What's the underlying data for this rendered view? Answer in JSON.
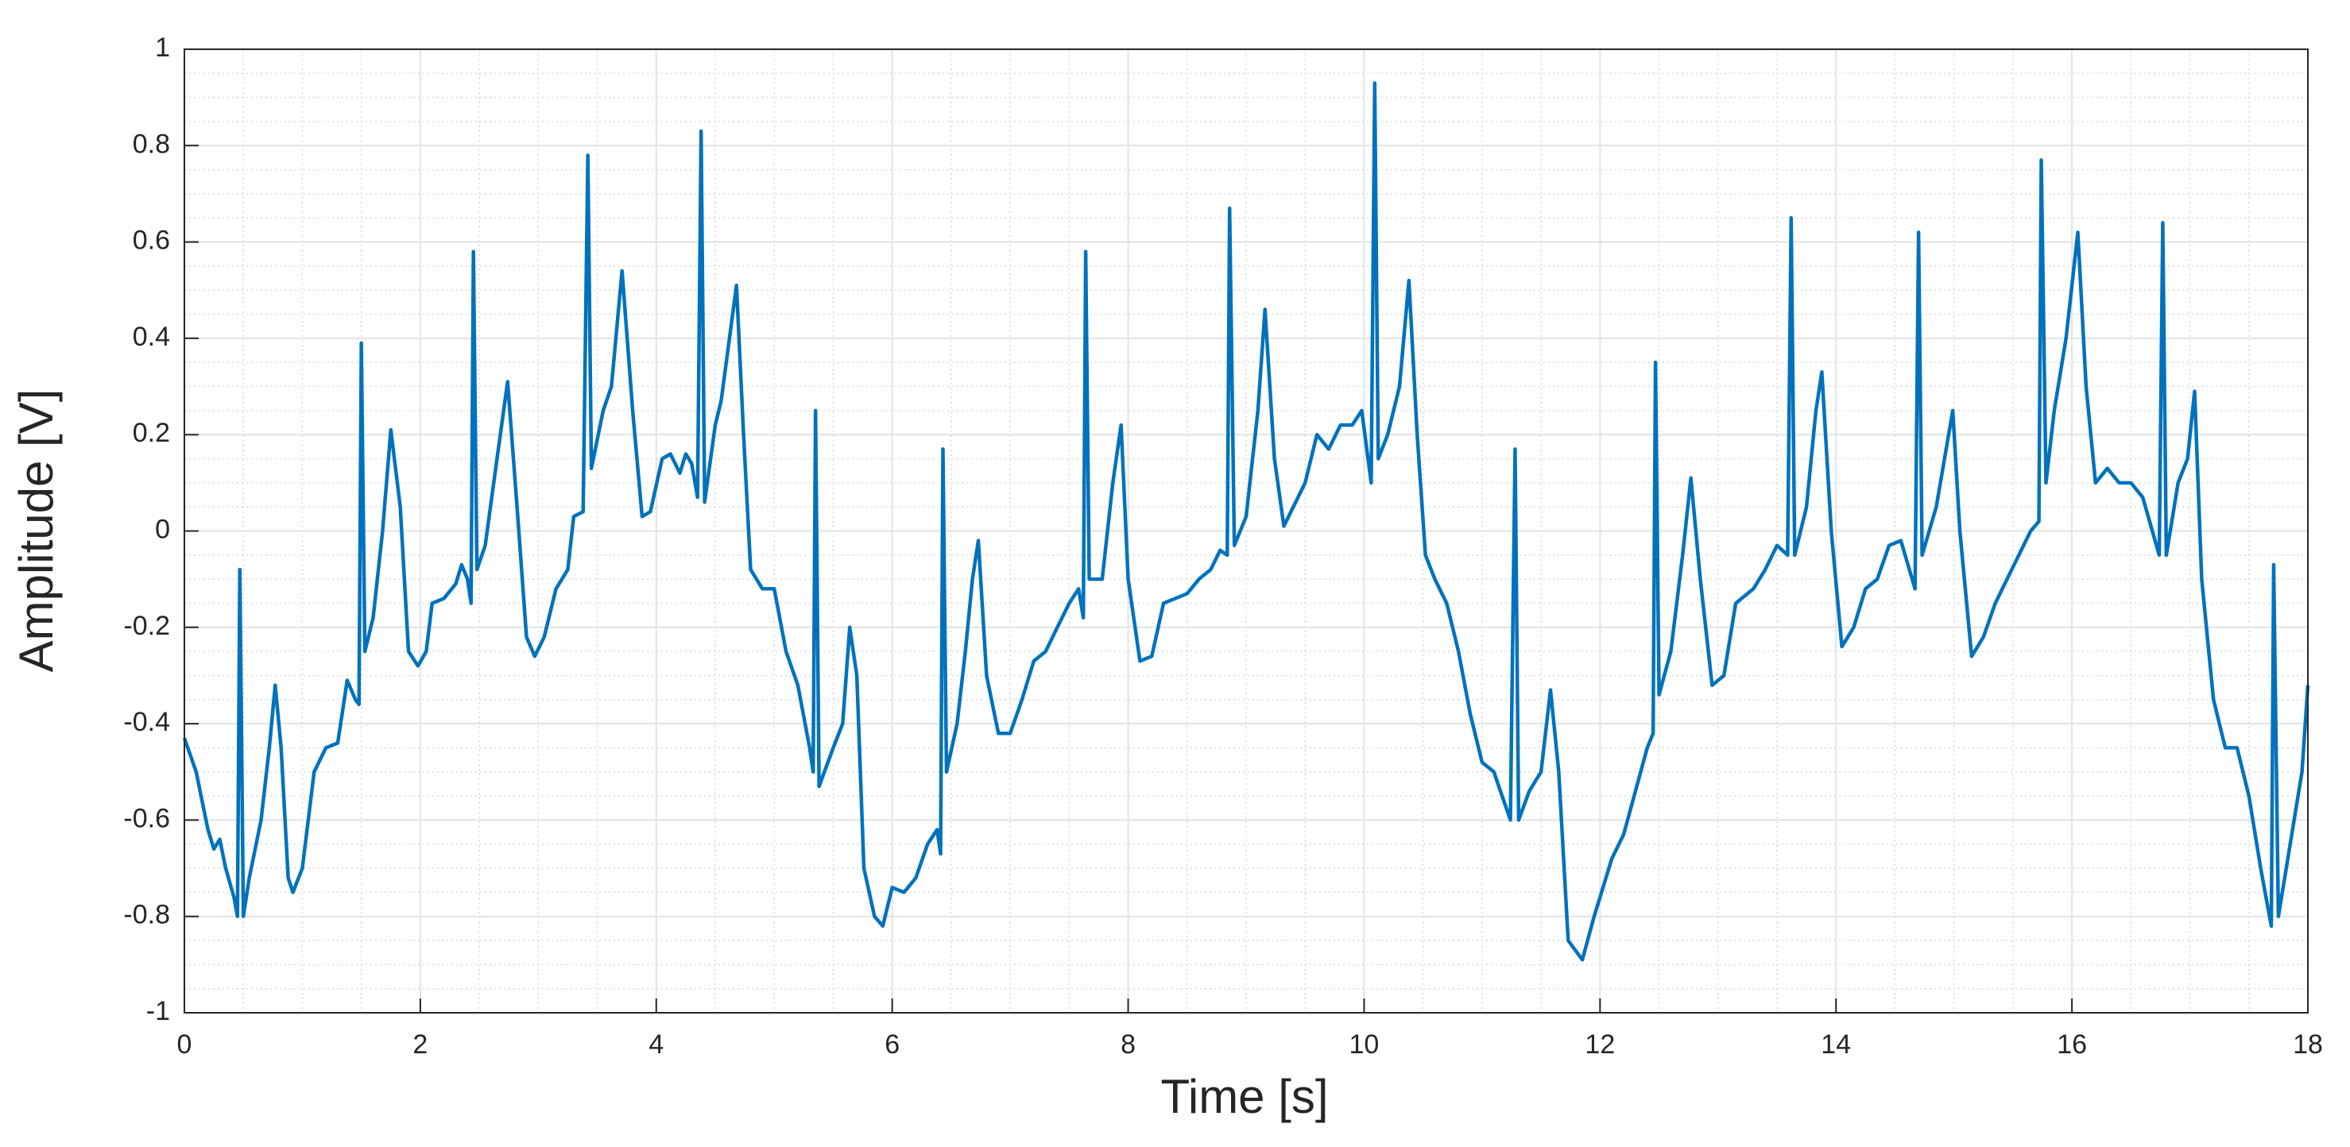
{
  "chart_data": {
    "type": "line",
    "xlabel": "Time [s]",
    "ylabel": "Amplitude [V]",
    "color": "#0072BD",
    "grid": true,
    "minor_grid": true,
    "xlim": [
      0,
      18
    ],
    "ylim": [
      -1,
      1
    ],
    "xticks": [
      0,
      2,
      4,
      6,
      8,
      10,
      12,
      14,
      16,
      18
    ],
    "yticks": [
      -1,
      -0.8,
      -0.6,
      -0.4,
      -0.2,
      0,
      0.2,
      0.4,
      0.6,
      0.8,
      1
    ],
    "x": [
      0,
      0.1,
      0.2,
      0.25,
      0.3,
      0.35,
      0.42,
      0.45,
      0.47,
      0.5,
      0.55,
      0.65,
      0.72,
      0.77,
      0.82,
      0.88,
      0.92,
      1.0,
      1.1,
      1.2,
      1.3,
      1.38,
      1.45,
      1.48,
      1.5,
      1.53,
      1.6,
      1.68,
      1.75,
      1.83,
      1.9,
      1.98,
      2.05,
      2.1,
      2.2,
      2.3,
      2.35,
      2.4,
      2.43,
      2.45,
      2.48,
      2.55,
      2.65,
      2.74,
      2.82,
      2.9,
      2.97,
      3.05,
      3.15,
      3.25,
      3.3,
      3.38,
      3.42,
      3.45,
      3.55,
      3.62,
      3.71,
      3.8,
      3.88,
      3.95,
      4.05,
      4.12,
      4.2,
      4.25,
      4.3,
      4.35,
      4.38,
      4.41,
      4.5,
      4.55,
      4.68,
      4.74,
      4.8,
      4.9,
      5.0,
      5.1,
      5.2,
      5.3,
      5.33,
      5.35,
      5.38,
      5.5,
      5.58,
      5.64,
      5.7,
      5.76,
      5.85,
      5.92,
      6.0,
      6.1,
      6.2,
      6.3,
      6.38,
      6.41,
      6.43,
      6.46,
      6.55,
      6.62,
      6.68,
      6.73,
      6.8,
      6.9,
      7.0,
      7.1,
      7.2,
      7.3,
      7.4,
      7.5,
      7.58,
      7.62,
      7.64,
      7.67,
      7.78,
      7.87,
      7.94,
      8.0,
      8.1,
      8.2,
      8.3,
      8.4,
      8.5,
      8.6,
      8.7,
      8.78,
      8.84,
      8.86,
      8.9,
      9.0,
      9.1,
      9.16,
      9.24,
      9.32,
      9.4,
      9.5,
      9.6,
      9.7,
      9.8,
      9.9,
      9.98,
      10.06,
      10.09,
      10.12,
      10.2,
      10.3,
      10.38,
      10.45,
      10.52,
      10.6,
      10.7,
      10.8,
      10.9,
      11.0,
      11.1,
      11.24,
      11.28,
      11.31,
      11.4,
      11.5,
      11.58,
      11.65,
      11.73,
      11.85,
      11.95,
      12.1,
      12.2,
      12.3,
      12.4,
      12.45,
      12.47,
      12.5,
      12.6,
      12.7,
      12.77,
      12.85,
      12.95,
      13.05,
      13.15,
      13.3,
      13.4,
      13.5,
      13.59,
      13.62,
      13.65,
      13.75,
      13.83,
      13.88,
      13.96,
      14.05,
      14.15,
      14.25,
      14.35,
      14.45,
      14.55,
      14.67,
      14.7,
      14.73,
      14.85,
      14.99,
      15.05,
      15.15,
      15.25,
      15.35,
      15.45,
      15.55,
      15.65,
      15.72,
      15.74,
      15.78,
      15.85,
      15.95,
      16.05,
      16.12,
      16.2,
      16.3,
      16.4,
      16.5,
      16.6,
      16.74,
      16.77,
      16.8,
      16.9,
      16.98,
      17.04,
      17.1,
      17.2,
      17.3,
      17.4,
      17.5,
      17.6,
      17.69,
      17.71,
      17.75,
      17.85,
      17.95,
      18.0
    ],
    "values": [
      -0.43,
      -0.5,
      -0.62,
      -0.66,
      -0.64,
      -0.7,
      -0.76,
      -0.8,
      -0.08,
      -0.8,
      -0.72,
      -0.6,
      -0.45,
      -0.32,
      -0.45,
      -0.72,
      -0.75,
      -0.7,
      -0.5,
      -0.45,
      -0.44,
      -0.31,
      -0.35,
      -0.36,
      0.39,
      -0.25,
      -0.18,
      0.0,
      0.21,
      0.05,
      -0.25,
      -0.28,
      -0.25,
      -0.15,
      -0.14,
      -0.11,
      -0.07,
      -0.1,
      -0.15,
      0.58,
      -0.08,
      -0.03,
      0.15,
      0.31,
      0.05,
      -0.22,
      -0.26,
      -0.22,
      -0.12,
      -0.08,
      0.03,
      0.04,
      0.78,
      0.13,
      0.25,
      0.3,
      0.54,
      0.25,
      0.03,
      0.04,
      0.15,
      0.16,
      0.12,
      0.16,
      0.14,
      0.07,
      0.83,
      0.06,
      0.22,
      0.27,
      0.51,
      0.2,
      -0.08,
      -0.12,
      -0.12,
      -0.25,
      -0.32,
      -0.45,
      -0.5,
      0.25,
      -0.53,
      -0.45,
      -0.4,
      -0.2,
      -0.3,
      -0.7,
      -0.8,
      -0.82,
      -0.74,
      -0.75,
      -0.72,
      -0.65,
      -0.62,
      -0.67,
      0.17,
      -0.5,
      -0.4,
      -0.25,
      -0.1,
      -0.02,
      -0.3,
      -0.42,
      -0.42,
      -0.35,
      -0.27,
      -0.25,
      -0.2,
      -0.15,
      -0.12,
      -0.18,
      0.58,
      -0.1,
      -0.1,
      0.1,
      0.22,
      -0.1,
      -0.27,
      -0.26,
      -0.15,
      -0.14,
      -0.13,
      -0.1,
      -0.08,
      -0.04,
      -0.05,
      0.67,
      -0.03,
      0.03,
      0.25,
      0.46,
      0.15,
      0.01,
      0.05,
      0.1,
      0.2,
      0.17,
      0.22,
      0.22,
      0.25,
      0.1,
      0.93,
      0.15,
      0.2,
      0.3,
      0.52,
      0.2,
      -0.05,
      -0.1,
      -0.15,
      -0.25,
      -0.38,
      -0.48,
      -0.5,
      -0.6,
      0.17,
      -0.6,
      -0.54,
      -0.5,
      -0.33,
      -0.5,
      -0.85,
      -0.89,
      -0.8,
      -0.68,
      -0.63,
      -0.54,
      -0.45,
      -0.42,
      0.35,
      -0.34,
      -0.25,
      -0.05,
      0.11,
      -0.1,
      -0.32,
      -0.3,
      -0.15,
      -0.12,
      -0.08,
      -0.03,
      -0.05,
      0.65,
      -0.05,
      0.05,
      0.25,
      0.33,
      0.0,
      -0.24,
      -0.2,
      -0.12,
      -0.1,
      -0.03,
      -0.02,
      -0.12,
      0.62,
      -0.05,
      0.05,
      0.25,
      0.0,
      -0.26,
      -0.22,
      -0.15,
      -0.1,
      -0.05,
      0.0,
      0.02,
      0.77,
      0.1,
      0.25,
      0.4,
      0.62,
      0.3,
      0.1,
      0.13,
      0.1,
      0.1,
      0.07,
      -0.05,
      0.64,
      -0.05,
      0.1,
      0.15,
      0.29,
      -0.1,
      -0.35,
      -0.45,
      -0.45,
      -0.55,
      -0.7,
      -0.82,
      -0.07,
      -0.8,
      -0.65,
      -0.5,
      -0.32
    ]
  }
}
